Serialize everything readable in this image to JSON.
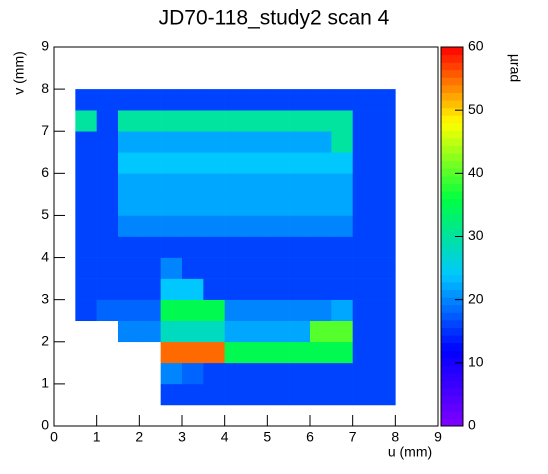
{
  "chart_data": {
    "type": "heatmap",
    "title": "JD70-118_study2 scan 4",
    "x_label": "u (mm)",
    "y_label": "v (mm)",
    "z_label": "µrad",
    "xlim": [
      0,
      9
    ],
    "ylim": [
      0,
      9
    ],
    "zlim": [
      0,
      60
    ],
    "xticks": [
      0,
      1,
      2,
      3,
      4,
      5,
      6,
      7,
      8,
      9
    ],
    "yticks": [
      0,
      1,
      2,
      3,
      4,
      5,
      6,
      7,
      8,
      9
    ],
    "zticks": [
      0,
      10,
      20,
      30,
      40,
      50,
      60
    ],
    "colorscale": [
      "#8000ff",
      "#0000ff",
      "#00c8ff",
      "#00ff40",
      "#ffff00",
      "#ff0000"
    ],
    "z": [
      [
        null,
        null,
        null,
        null,
        null,
        null,
        null,
        null,
        null,
        null,
        null,
        null,
        null,
        null,
        null,
        null,
        null,
        null
      ],
      [
        null,
        null,
        null,
        null,
        null,
        16,
        16,
        16,
        16,
        16,
        16,
        16,
        16,
        16,
        16,
        16,
        null,
        null
      ],
      [
        null,
        null,
        null,
        null,
        null,
        20,
        18,
        16,
        16,
        16,
        16,
        16,
        16,
        16,
        16,
        16,
        null,
        null
      ],
      [
        null,
        null,
        null,
        null,
        null,
        55,
        55,
        55,
        35,
        35,
        35,
        35,
        35,
        35,
        16,
        16,
        null,
        null
      ],
      [
        null,
        null,
        null,
        20,
        20,
        28,
        28,
        28,
        22,
        22,
        22,
        22,
        40,
        40,
        16,
        16,
        null,
        null
      ],
      [
        null,
        16,
        18,
        18,
        18,
        35,
        35,
        35,
        20,
        20,
        20,
        20,
        20,
        22,
        16,
        16,
        null,
        null
      ],
      [
        null,
        16,
        16,
        16,
        16,
        24,
        24,
        16,
        16,
        16,
        16,
        16,
        16,
        16,
        16,
        16,
        null,
        null
      ],
      [
        null,
        16,
        16,
        16,
        16,
        20,
        16,
        16,
        16,
        16,
        16,
        16,
        16,
        16,
        16,
        16,
        null,
        null
      ],
      [
        null,
        16,
        16,
        16,
        16,
        16,
        16,
        16,
        16,
        16,
        16,
        16,
        16,
        16,
        16,
        16,
        null,
        null
      ],
      [
        null,
        16,
        16,
        20,
        20,
        20,
        20,
        20,
        20,
        20,
        20,
        20,
        20,
        20,
        16,
        16,
        null,
        null
      ],
      [
        null,
        16,
        16,
        22,
        22,
        22,
        22,
        22,
        22,
        22,
        22,
        22,
        22,
        22,
        16,
        16,
        null,
        null
      ],
      [
        null,
        16,
        16,
        22,
        22,
        22,
        22,
        22,
        22,
        22,
        22,
        22,
        22,
        22,
        16,
        16,
        null,
        null
      ],
      [
        null,
        16,
        16,
        24,
        24,
        24,
        24,
        24,
        24,
        24,
        24,
        24,
        24,
        24,
        16,
        16,
        null,
        null
      ],
      [
        null,
        16,
        16,
        22,
        22,
        22,
        22,
        22,
        22,
        22,
        22,
        22,
        22,
        30,
        16,
        16,
        null,
        null
      ],
      [
        null,
        30,
        16,
        30,
        30,
        30,
        30,
        30,
        30,
        30,
        30,
        30,
        30,
        30,
        16,
        16,
        null,
        null
      ],
      [
        null,
        16,
        16,
        16,
        16,
        16,
        16,
        16,
        16,
        16,
        16,
        16,
        16,
        16,
        16,
        16,
        null,
        null
      ],
      [
        null,
        null,
        null,
        null,
        null,
        null,
        null,
        null,
        null,
        null,
        null,
        null,
        null,
        null,
        null,
        null,
        null,
        null
      ],
      [
        null,
        null,
        null,
        null,
        null,
        null,
        null,
        null,
        null,
        null,
        null,
        null,
        null,
        null,
        null,
        null,
        null,
        null
      ]
    ]
  }
}
